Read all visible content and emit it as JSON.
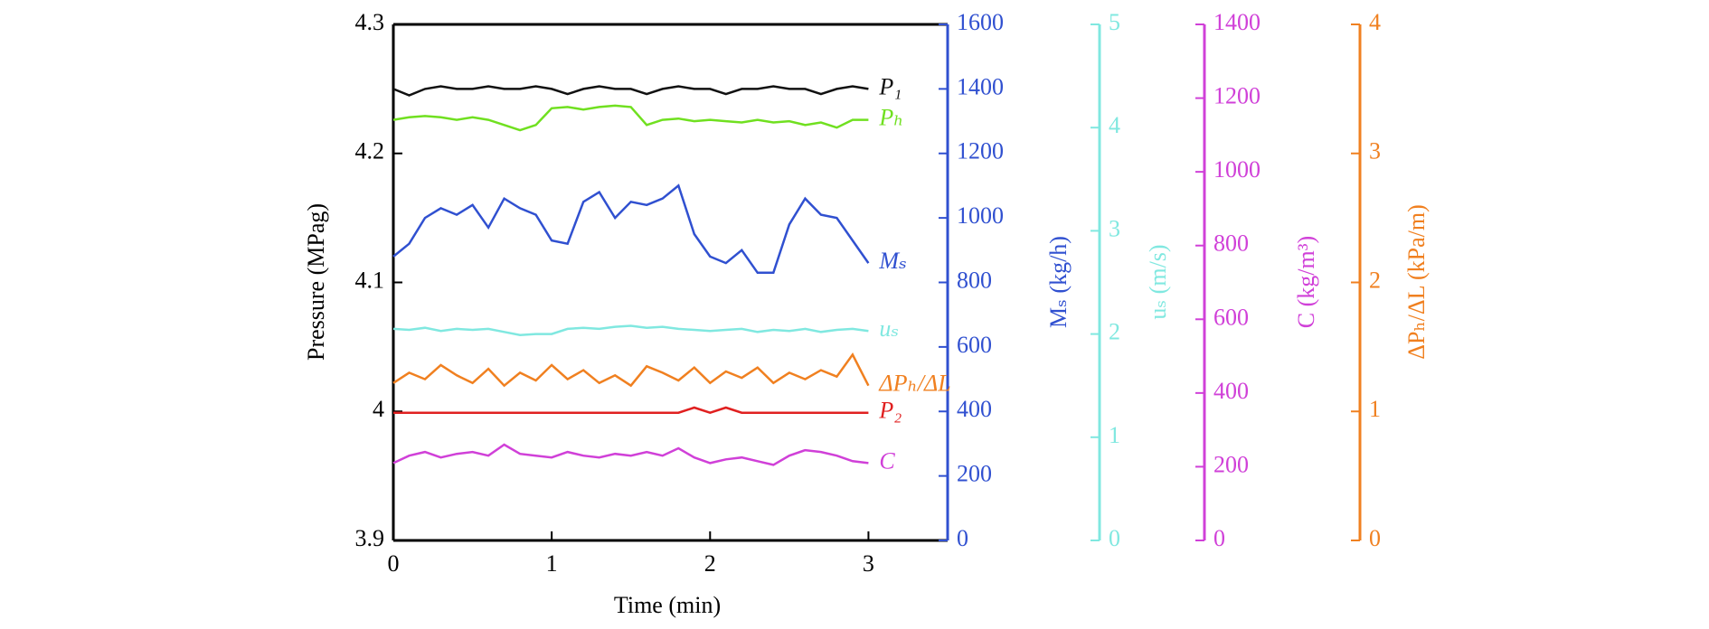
{
  "chart_data": {
    "type": "line",
    "xlabel": "Time (min)",
    "ylabel": "Pressure (MPag)",
    "y2label": "Mₛ (kg/h)",
    "y3label": "uₛ (m/s)",
    "y4label": "C (kg/m³)",
    "y5label": "ΔPₕ/ΔL (kPa/m)",
    "xlim": [
      0,
      3.5
    ],
    "xticks": [
      0,
      1,
      2,
      3
    ],
    "ylim": [
      3.9,
      4.3
    ],
    "yticks": [
      3.9,
      4.0,
      4.1,
      4.2,
      4.3
    ],
    "y2lim": [
      0,
      1600
    ],
    "y2ticks": [
      0,
      200,
      400,
      600,
      800,
      1000,
      1200,
      1400,
      1600
    ],
    "y2color": "#3050d0",
    "y3lim": [
      0,
      5
    ],
    "y3ticks": [
      0,
      1,
      2,
      3,
      4,
      5
    ],
    "y3color": "#80e8e0",
    "y4lim": [
      0,
      1400
    ],
    "y4ticks": [
      0,
      200,
      400,
      600,
      800,
      1000,
      1200,
      1400
    ],
    "y4color": "#d040d8",
    "y5lim": [
      0,
      4
    ],
    "y5ticks": [
      0,
      1,
      2,
      3,
      4
    ],
    "y5color": "#f08020",
    "x": [
      0,
      0.1,
      0.2,
      0.3,
      0.4,
      0.5,
      0.6,
      0.7,
      0.8,
      0.9,
      1.0,
      1.1,
      1.2,
      1.3,
      1.4,
      1.5,
      1.6,
      1.7,
      1.8,
      1.9,
      2.0,
      2.1,
      2.2,
      2.3,
      2.4,
      2.5,
      2.6,
      2.7,
      2.8,
      2.9,
      3.0
    ],
    "series": [
      {
        "name": "P₁",
        "color": "#111111",
        "axis": "y",
        "values": [
          4.25,
          4.245,
          4.25,
          4.252,
          4.25,
          4.25,
          4.252,
          4.25,
          4.25,
          4.252,
          4.25,
          4.246,
          4.25,
          4.252,
          4.25,
          4.25,
          4.246,
          4.25,
          4.252,
          4.25,
          4.25,
          4.246,
          4.25,
          4.25,
          4.252,
          4.25,
          4.25,
          4.246,
          4.25,
          4.252,
          4.25
        ]
      },
      {
        "name": "Pₕ",
        "color": "#70e020",
        "axis": "y",
        "values": [
          4.226,
          4.228,
          4.229,
          4.228,
          4.226,
          4.228,
          4.226,
          4.222,
          4.218,
          4.222,
          4.235,
          4.236,
          4.234,
          4.236,
          4.237,
          4.236,
          4.222,
          4.226,
          4.227,
          4.225,
          4.226,
          4.225,
          4.224,
          4.226,
          4.224,
          4.225,
          4.222,
          4.224,
          4.22,
          4.226,
          4.226
        ]
      },
      {
        "name": "Mₛ",
        "color": "#3050d0",
        "axis": "y2",
        "values": [
          880,
          920,
          1000,
          1030,
          1010,
          1040,
          970,
          1060,
          1030,
          1010,
          930,
          920,
          1050,
          1080,
          1000,
          1050,
          1040,
          1060,
          1100,
          950,
          880,
          860,
          900,
          830,
          830,
          980,
          1060,
          1010,
          1000,
          930,
          860
        ]
      },
      {
        "name": "uₛ",
        "color": "#80e8e0",
        "axis": "y3",
        "values": [
          2.05,
          2.04,
          2.06,
          2.03,
          2.05,
          2.04,
          2.05,
          2.02,
          1.99,
          2.0,
          2.0,
          2.05,
          2.06,
          2.05,
          2.07,
          2.08,
          2.06,
          2.07,
          2.05,
          2.04,
          2.03,
          2.04,
          2.05,
          2.02,
          2.04,
          2.03,
          2.05,
          2.02,
          2.04,
          2.05,
          2.03
        ]
      },
      {
        "name": "ΔPₕ/ΔL",
        "color": "#f08020",
        "axis": "y5",
        "values": [
          1.22,
          1.3,
          1.25,
          1.36,
          1.28,
          1.22,
          1.33,
          1.2,
          1.3,
          1.24,
          1.36,
          1.25,
          1.32,
          1.22,
          1.28,
          1.2,
          1.35,
          1.3,
          1.24,
          1.34,
          1.22,
          1.31,
          1.26,
          1.34,
          1.22,
          1.3,
          1.25,
          1.32,
          1.27,
          1.44,
          1.2
        ]
      },
      {
        "name": "P₂",
        "color": "#e02020",
        "axis": "y",
        "values": [
          3.999,
          3.999,
          3.999,
          3.999,
          3.999,
          3.999,
          3.999,
          3.999,
          3.999,
          3.999,
          3.999,
          3.999,
          3.999,
          3.999,
          3.999,
          3.999,
          3.999,
          3.999,
          3.999,
          4.003,
          3.999,
          4.003,
          3.999,
          3.999,
          3.999,
          3.999,
          3.999,
          3.999,
          3.999,
          3.999,
          3.999
        ]
      },
      {
        "name": "C",
        "color": "#d040d8",
        "axis": "y4",
        "values": [
          210,
          230,
          240,
          225,
          235,
          240,
          230,
          260,
          235,
          230,
          225,
          240,
          230,
          225,
          235,
          230,
          240,
          230,
          250,
          225,
          210,
          220,
          225,
          215,
          205,
          230,
          245,
          240,
          230,
          215,
          210
        ]
      }
    ]
  }
}
